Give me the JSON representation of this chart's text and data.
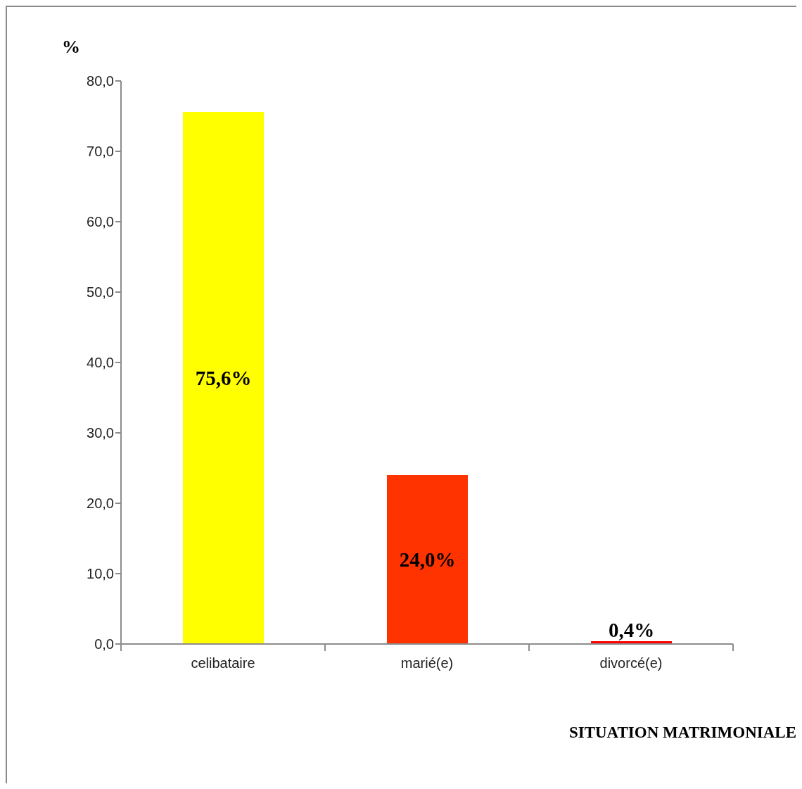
{
  "chart_data": {
    "type": "bar",
    "ylabel": "%",
    "xlabel": "SITUATION MATRIMONIALE",
    "categories": [
      "celibataire",
      "marié(e)",
      "divorcé(e)"
    ],
    "values": [
      75.6,
      24.0,
      0.4
    ],
    "colors": [
      "#ffff00",
      "#ff3300",
      "#ff0000"
    ],
    "value_labels": [
      "75,6%",
      "24,0%",
      "0,4%"
    ],
    "ylim": [
      0,
      80
    ],
    "yticks": [
      {
        "value": 0,
        "label": "0,0"
      },
      {
        "value": 10,
        "label": "10,0"
      },
      {
        "value": 20,
        "label": "20,0"
      },
      {
        "value": 30,
        "label": "30,0"
      },
      {
        "value": 40,
        "label": "40,0"
      },
      {
        "value": 50,
        "label": "50,0"
      },
      {
        "value": 60,
        "label": "60,0"
      },
      {
        "value": 70,
        "label": "70,0"
      },
      {
        "value": 80,
        "label": "80,0"
      }
    ]
  }
}
